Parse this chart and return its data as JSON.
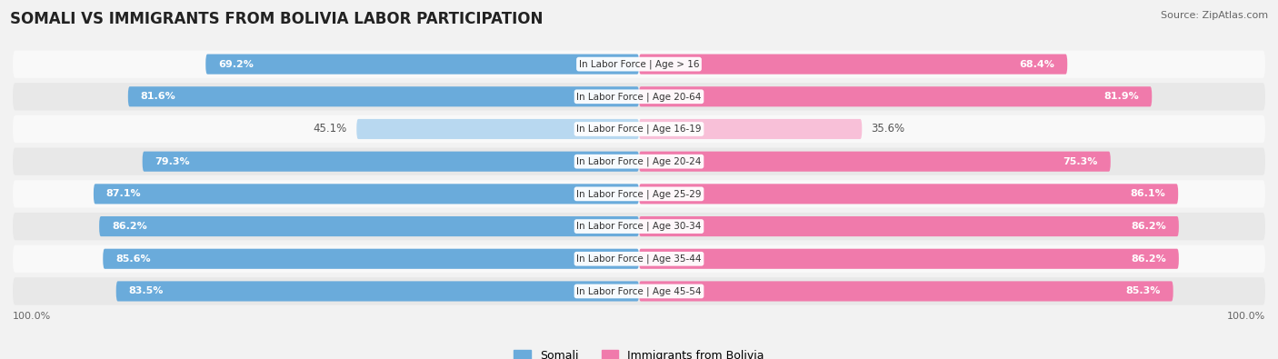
{
  "title": "SOMALI VS IMMIGRANTS FROM BOLIVIA LABOR PARTICIPATION",
  "source": "Source: ZipAtlas.com",
  "categories": [
    "In Labor Force | Age > 16",
    "In Labor Force | Age 20-64",
    "In Labor Force | Age 16-19",
    "In Labor Force | Age 20-24",
    "In Labor Force | Age 25-29",
    "In Labor Force | Age 30-34",
    "In Labor Force | Age 35-44",
    "In Labor Force | Age 45-54"
  ],
  "somali_values": [
    69.2,
    81.6,
    45.1,
    79.3,
    87.1,
    86.2,
    85.6,
    83.5
  ],
  "bolivia_values": [
    68.4,
    81.9,
    35.6,
    75.3,
    86.1,
    86.2,
    86.2,
    85.3
  ],
  "somali_color": "#6aabdb",
  "somali_color_light": "#b8d8f0",
  "bolivia_color": "#f07aab",
  "bolivia_color_light": "#f8c0d8",
  "background_color": "#f2f2f2",
  "row_bg_light": "#f9f9f9",
  "row_bg_dark": "#e8e8e8",
  "label_fontsize": 8,
  "title_fontsize": 12,
  "max_val": 100.0,
  "legend_somali": "Somali",
  "legend_bolivia": "Immigrants from Bolivia"
}
